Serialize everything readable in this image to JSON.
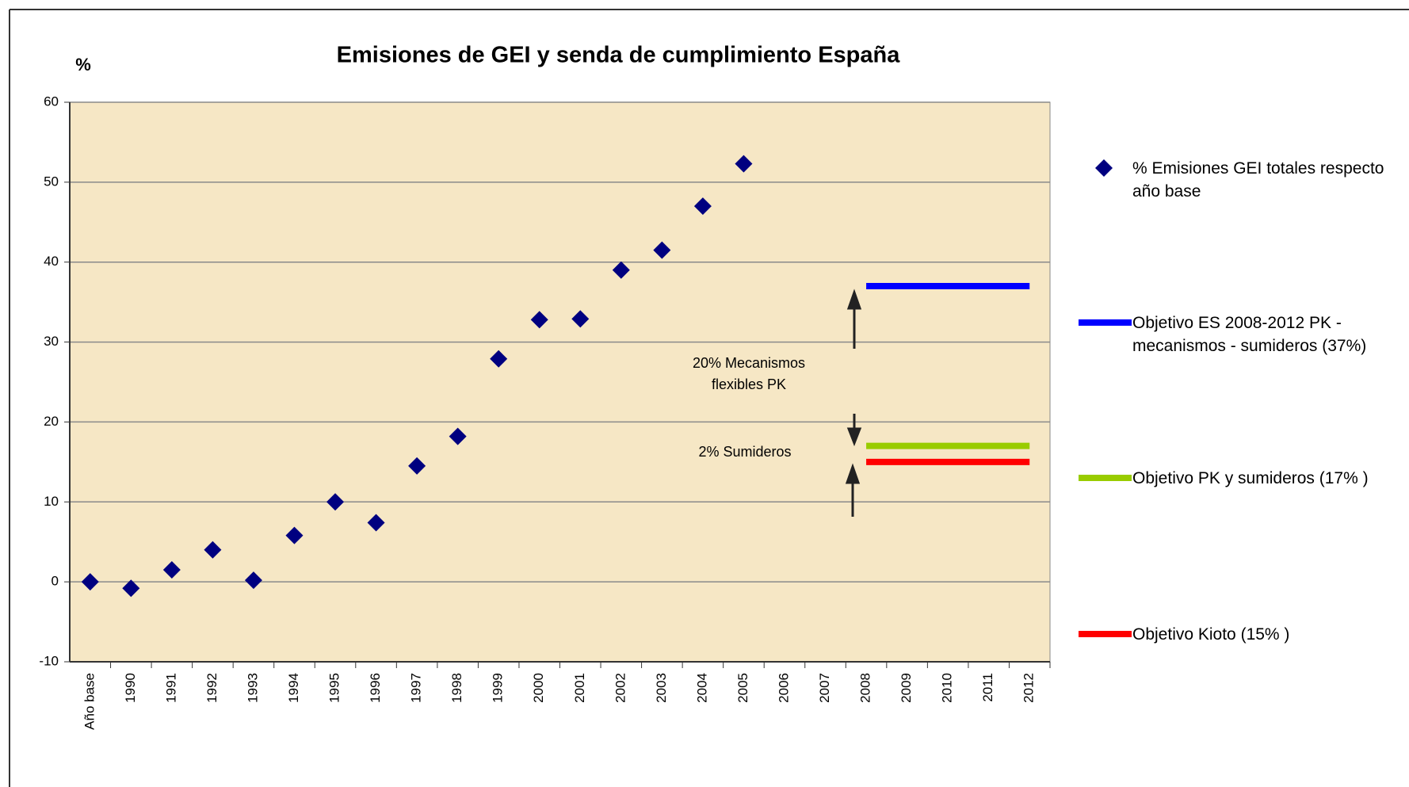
{
  "chart_data": {
    "type": "line",
    "title": "Emisiones de GEI y senda de cumplimiento España",
    "y_label": "%",
    "categories": [
      "Año base",
      "1990",
      "1991",
      "1992",
      "1993",
      "1994",
      "1995",
      "1996",
      "1997",
      "1998",
      "1999",
      "2000",
      "2001",
      "2002",
      "2003",
      "2004",
      "2005",
      "2006",
      "2007",
      "2008",
      "2009",
      "2010",
      "2011",
      "2012"
    ],
    "series": [
      {
        "name": "% Emisiones GEI totales respecto año base",
        "color": "#000080",
        "marker": "diamond",
        "values": [
          0,
          -0.8,
          1.5,
          4,
          0.2,
          5.8,
          10,
          7.4,
          14.5,
          18.2,
          27.9,
          32.8,
          32.9,
          39,
          41.5,
          47,
          52.3,
          null,
          null,
          null,
          null,
          null,
          null,
          null
        ]
      },
      {
        "name": "Objetivo ES 2008-2012 PK - mecanismos - sumideros (37%)",
        "color": "#0000ff",
        "values": [
          null,
          null,
          null,
          null,
          null,
          null,
          null,
          null,
          null,
          null,
          null,
          null,
          null,
          null,
          null,
          null,
          null,
          null,
          null,
          37,
          37,
          37,
          37,
          37
        ]
      },
      {
        "name": "Objetivo PK y sumideros (17% )",
        "color": "#99cc00",
        "values": [
          null,
          null,
          null,
          null,
          null,
          null,
          null,
          null,
          null,
          null,
          null,
          null,
          null,
          null,
          null,
          null,
          null,
          null,
          null,
          17,
          17,
          17,
          17,
          17
        ]
      },
      {
        "name": "Objetivo Kioto (15% )",
        "color": "#ff0000",
        "values": [
          null,
          null,
          null,
          null,
          null,
          null,
          null,
          null,
          null,
          null,
          null,
          null,
          null,
          null,
          null,
          null,
          null,
          null,
          null,
          15,
          15,
          15,
          15,
          15
        ]
      }
    ],
    "annotations": [
      [
        "20% Mecanismos",
        "flexibles PK"
      ],
      [
        "2% Sumideros"
      ]
    ],
    "ylim": [
      -10,
      60
    ],
    "yticks": [
      -10,
      0,
      10,
      20,
      30,
      40,
      50,
      60
    ],
    "grid": true,
    "legend": "right"
  }
}
